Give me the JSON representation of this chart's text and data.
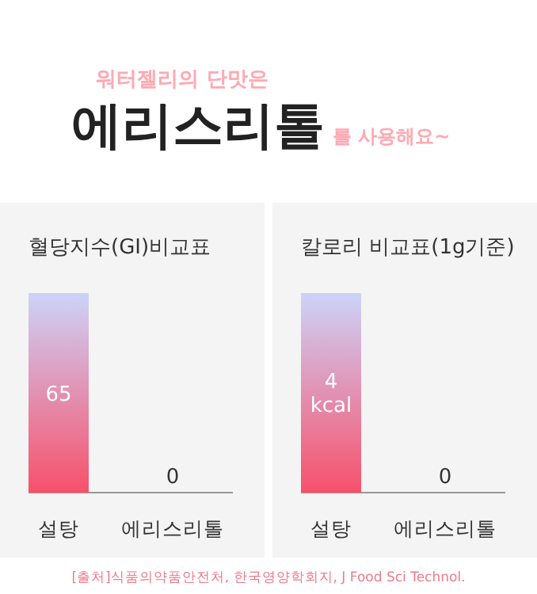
{
  "chart_data": [
    {
      "type": "other",
      "subtitle": "워터젤리의 단맛은",
      "title": "에리스리톨",
      "annotations": [
        "를 사용해요~"
      ]
    },
    {
      "type": "bar",
      "title": "혈당지수(GI)비교표",
      "categories": [
        "설탕",
        "에리스리톨"
      ],
      "values": [
        65,
        0
      ],
      "colors": [
        "#f7506a",
        "#9fa8f2"
      ],
      "data_labels": true
    },
    {
      "type": "bar",
      "title": "칼로리 비교표(1g기준)",
      "categories": [
        "설탕",
        "에리스리톨"
      ],
      "values": [
        4,
        0
      ],
      "colors": [
        "#f7506a",
        "#9fa8f2"
      ],
      "value_labels": [
        "4 kcal",
        "0"
      ],
      "annotations": [
        "[출처]식품의약품안전처, 한국영양학회지, J Food Sci Technol."
      ]
    }
  ]
}
